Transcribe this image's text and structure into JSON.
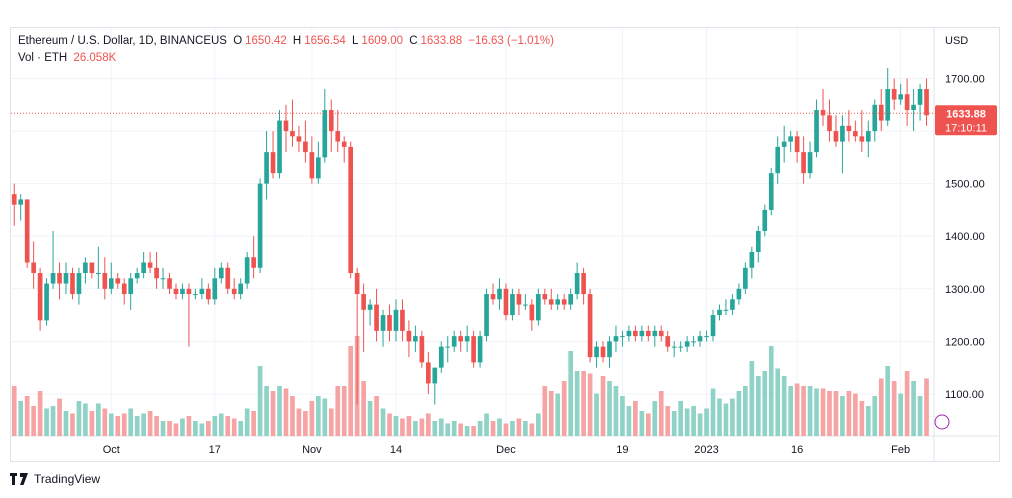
{
  "legend": {
    "symbol": "Ethereum / U.S. Dollar, 1D, BINANCEUS",
    "o_label": "O",
    "o_value": "1650.42",
    "h_label": "H",
    "h_value": "1656.54",
    "l_label": "L",
    "l_value": "1609.00",
    "c_label": "C",
    "c_value": "1633.88",
    "change": "−16.63 (−1.01%)",
    "vol_label": "Vol · ETH",
    "vol_value": "26.058K"
  },
  "price_tag": {
    "value": "1633.88",
    "countdown": "17:10:11"
  },
  "branding": {
    "name": "TradingView"
  },
  "colors": {
    "up": "#26a69a",
    "down": "#ef5350",
    "up_vol": "#8fd2c6",
    "down_vol": "#f5a3a3",
    "grid": "#f0f3fa",
    "text": "#131722"
  },
  "chart_data": {
    "type": "candlestick",
    "currency_label": "USD",
    "y_ticks": [
      1100,
      1200,
      1300,
      1400,
      1500,
      1600,
      1700
    ],
    "y_tick_labels": [
      "1100.00",
      "1200.00",
      "1300.00",
      "1400.00",
      "1500.00",
      "1600.00",
      "1700.00"
    ],
    "ylim": [
      1020,
      1720
    ],
    "x_ticks": [
      {
        "label": "Oct",
        "index": 15
      },
      {
        "label": "17",
        "index": 31
      },
      {
        "label": "Nov",
        "index": 46
      },
      {
        "label": "14",
        "index": 59
      },
      {
        "label": "Dec",
        "index": 76
      },
      {
        "label": "19",
        "index": 94
      },
      {
        "label": "2023",
        "index": 107
      },
      {
        "label": "16",
        "index": 121
      },
      {
        "label": "Feb",
        "index": 137
      }
    ],
    "last_price": 1633.88,
    "volume_scale_max": 1.0,
    "candles": []
  }
}
